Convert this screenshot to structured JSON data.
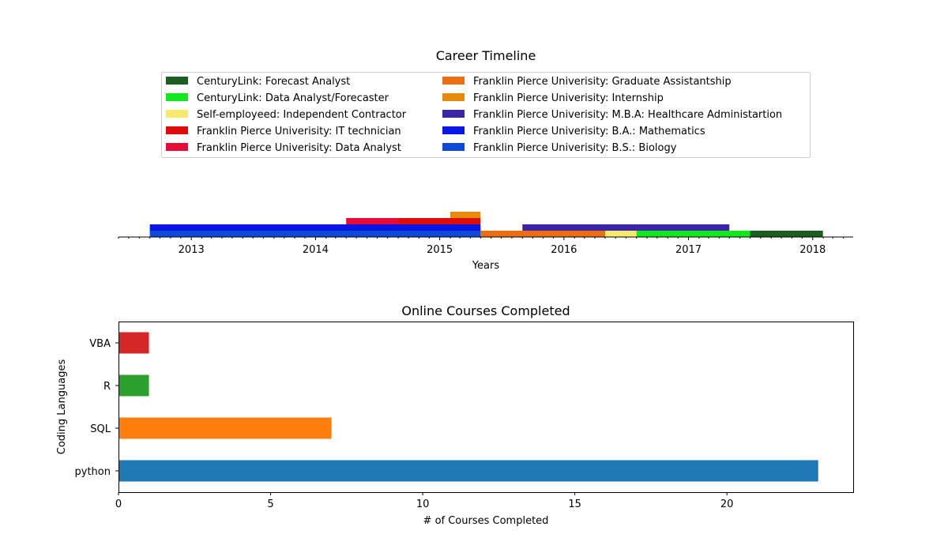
{
  "chart_data": [
    {
      "type": "timeline",
      "title": "Career Timeline",
      "xlabel": "Years",
      "x_tick_labels": [
        "2013",
        "2014",
        "2015",
        "2016",
        "2017",
        "2018"
      ],
      "x_range": [
        "2012-06-01",
        "2018-04-30"
      ],
      "legend_position": "top",
      "series": [
        {
          "name": "CenturyLink: Forecast Analyst",
          "color": "#1b5e20",
          "start": "2017-07-01",
          "end": "2018-01-31",
          "level": 0
        },
        {
          "name": "CenturyLink: Data Analyst/Forecaster",
          "color": "#12e81e",
          "start": "2016-08-01",
          "end": "2017-07-01",
          "level": 0
        },
        {
          "name": "Self-employeed: Independent Contractor",
          "color": "#f5ea6b",
          "start": "2016-05-01",
          "end": "2016-08-01",
          "level": 0
        },
        {
          "name": "Franklin Pierce Univerisity: IT technician",
          "color": "#e00b0b",
          "start": "2014-09-01",
          "end": "2015-05-01",
          "level": 2
        },
        {
          "name": "Franklin Pierce Univerisity: Data Analyst",
          "color": "#ea0a37",
          "start": "2014-04-01",
          "end": "2014-09-01",
          "level": 2
        },
        {
          "name": "Franklin Pierce Univerisity: Graduate Assistantship",
          "color": "#ec6d12",
          "start": "2015-05-01",
          "end": "2016-05-01",
          "level": 0
        },
        {
          "name": "Franklin Pierce Univerisity: Internship",
          "color": "#e88b0c",
          "start": "2015-02-01",
          "end": "2015-05-01",
          "level": 3
        },
        {
          "name": "Franklin Pierce Univerisity: M.B.A: Healthcare Administartion",
          "color": "#3a24a8",
          "start": "2015-09-01",
          "end": "2017-05-01",
          "level": 1
        },
        {
          "name": "Franklin Pierce Univerisity: B.A.: Mathematics",
          "color": "#0a16e6",
          "start": "2012-09-01",
          "end": "2015-05-01",
          "level": 1
        },
        {
          "name": "Franklin Pierce Univerisity: B.S.: Biology",
          "color": "#0e49d9",
          "start": "2012-09-01",
          "end": "2015-05-01",
          "level": 0
        }
      ]
    },
    {
      "type": "bar",
      "orientation": "horizontal",
      "title": "Online Courses Completed",
      "xlabel": "# of Courses Completed",
      "ylabel": "Coding Languages",
      "categories": [
        "python",
        "SQL",
        "R",
        "VBA"
      ],
      "values": [
        23,
        7,
        1,
        1
      ],
      "colors": [
        "#1f77b4",
        "#ff7f0e",
        "#2ca02c",
        "#d62728"
      ],
      "xlim": [
        0,
        24.15
      ],
      "x_ticks": [
        0,
        5,
        10,
        15,
        20
      ],
      "grid": false
    }
  ]
}
